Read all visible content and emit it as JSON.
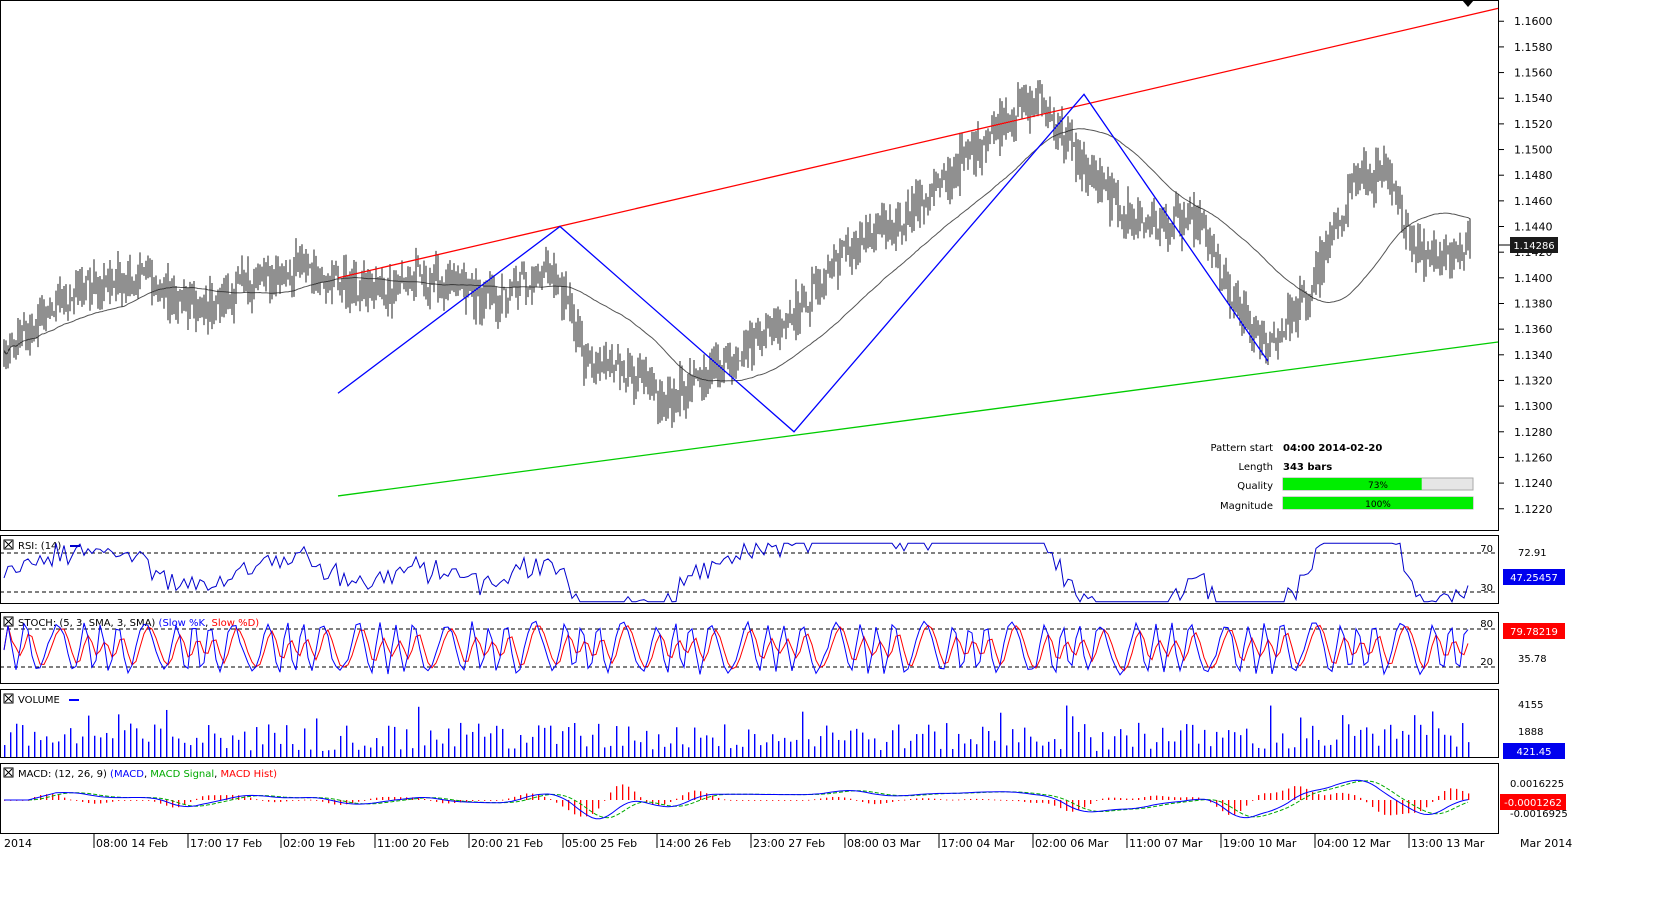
{
  "chart_data": {
    "type": "candlestick",
    "price_axis": {
      "ticks": [
        "1.1600",
        "1.1580",
        "1.1560",
        "1.1540",
        "1.1520",
        "1.1500",
        "1.1480",
        "1.1460",
        "1.1440",
        "1.1420",
        "1.1400",
        "1.1380",
        "1.1360",
        "1.1340",
        "1.1320",
        "1.1300",
        "1.1280",
        "1.1260",
        "1.1240",
        "1.1220"
      ],
      "range": [
        1.1205,
        1.1615
      ],
      "current_price": "1.14286"
    },
    "time_axis": [
      "2014",
      "08:00 14 Feb",
      "17:00 17 Feb",
      "02:00 19 Feb",
      "11:00 20 Feb",
      "20:00 21 Feb",
      "05:00 25 Feb",
      "14:00 26 Feb",
      "23:00 27 Feb",
      "08:00 03 Mar",
      "17:00 04 Mar",
      "02:00 06 Mar",
      "11:00 07 Mar",
      "19:00 10 Mar",
      "04:00 12 Mar",
      "13:00 13 Mar",
      "Mar 2014"
    ],
    "anchors": [
      [
        0,
        1.134
      ],
      [
        14,
        1.136
      ],
      [
        30,
        1.1385
      ],
      [
        50,
        1.1395
      ],
      [
        70,
        1.1405
      ],
      [
        85,
        1.138
      ],
      [
        100,
        1.1375
      ],
      [
        120,
        1.1395
      ],
      [
        133,
        1.14
      ],
      [
        152,
        1.141
      ],
      [
        175,
        1.139
      ],
      [
        190,
        1.139
      ],
      [
        205,
        1.14
      ],
      [
        220,
        1.1395
      ],
      [
        247,
        1.138
      ],
      [
        262,
        1.14
      ],
      [
        272,
        1.141
      ],
      [
        282,
        1.138
      ],
      [
        292,
        1.133
      ],
      [
        310,
        1.133
      ],
      [
        330,
        1.13
      ],
      [
        347,
        1.132
      ],
      [
        364,
        1.134
      ],
      [
        382,
        1.136
      ],
      [
        400,
        1.138
      ],
      [
        420,
        1.142
      ],
      [
        444,
        1.144
      ],
      [
        470,
        1.1475
      ],
      [
        500,
        1.1525
      ],
      [
        518,
        1.154
      ],
      [
        538,
        1.149
      ],
      [
        560,
        1.145
      ],
      [
        578,
        1.144
      ],
      [
        598,
        1.1445
      ],
      [
        614,
        1.138
      ],
      [
        631,
        1.1345
      ],
      [
        652,
        1.1385
      ],
      [
        666,
        1.144
      ],
      [
        675,
        1.148
      ],
      [
        690,
        1.148
      ],
      [
        708,
        1.142
      ],
      [
        722,
        1.142
      ],
      [
        733,
        1.1425
      ]
    ],
    "indicator_values": {
      "rsi_last": "47.25457",
      "stoch_last": "79.78219",
      "volume_last": "421.45",
      "macd_last": "-0.0001262"
    },
    "pattern_lines": {
      "resistance": [
        [
          167,
          1.14
        ],
        [
          733,
          1.161
        ]
      ],
      "support": [
        [
          167,
          1.123
        ],
        [
          733,
          1.135
        ]
      ],
      "zigzag": [
        [
          167,
          1.131
        ],
        [
          278,
          1.144
        ],
        [
          395,
          1.128
        ],
        [
          540,
          1.1543
        ],
        [
          632,
          1.1335
        ]
      ]
    }
  },
  "pattern_info": {
    "start_label": "Pattern start",
    "start_value": "04:00 2014-02-20",
    "length_label": "Length",
    "length_value": "343 bars",
    "quality_label": "Quality",
    "quality_value": "73%",
    "quality_fraction": 0.73,
    "magnitude_label": "Magnitude",
    "magnitude_value": "100%",
    "magnitude_fraction": 1.0
  },
  "panels": {
    "rsi": {
      "title": "RSI: (14)",
      "levels": [
        "70",
        "30"
      ],
      "scale_label": "72.91",
      "current": "47.25457"
    },
    "stoch": {
      "title_prefix": "STOCH: (5, 3, SMA, 3, SMA)",
      "slow_k": "Slow %K",
      "slow_d": "Slow %D",
      "levels": [
        "80",
        "20"
      ],
      "scale_label": "35.78",
      "current": "79.78219"
    },
    "volume": {
      "title": "VOLUME",
      "labels": [
        "4155",
        "1888"
      ],
      "current": "421.45"
    },
    "macd": {
      "title_prefix": "MACD: (12, 26, 9)",
      "macd": "MACD",
      "signal": "MACD Signal",
      "hist": "MACD Hist",
      "labels": [
        "0.0016225",
        "-0.0016925"
      ],
      "current": "-0.0001262"
    }
  },
  "colors": {
    "resistance": "#ff0000",
    "support": "#00cc00",
    "zigzag": "#0000ff",
    "ma": "#555555",
    "rsi": "#0000cc",
    "stoch_k": "#0000ff",
    "stoch_d": "#ff0000",
    "volume": "#0000ff",
    "macd": "#0000ff",
    "signal": "#00aa00",
    "hist": "#ff0000",
    "progress": "#00ee00"
  }
}
